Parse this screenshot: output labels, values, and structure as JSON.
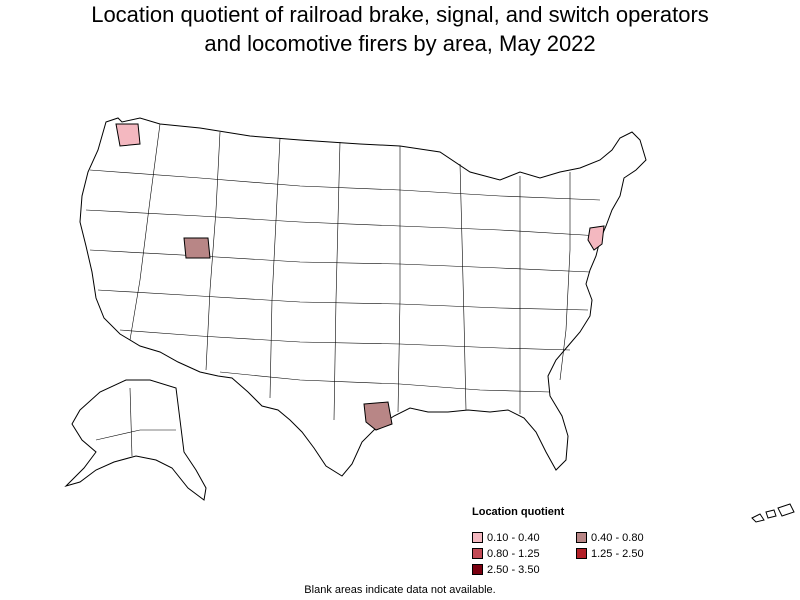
{
  "title": {
    "line1": "Location quotient of railroad brake, signal, and switch operators",
    "line2": "and locomotive firers by area, May 2022"
  },
  "legend": {
    "title": "Location quotient",
    "items": [
      {
        "label": "0.10 - 0.40",
        "color": "#f4b8c0"
      },
      {
        "label": "0.40 - 0.80",
        "color": "#b88686"
      },
      {
        "label": "0.80 - 1.25",
        "color": "#c24a55"
      },
      {
        "label": "1.25 - 2.50",
        "color": "#b22028"
      },
      {
        "label": "2.50 - 3.50",
        "color": "#7a0010"
      }
    ]
  },
  "footnote": "Blank areas indicate data not available.",
  "map": {
    "outline_color": "#000000",
    "blank_color": "#ffffff",
    "highlighted_areas": [
      {
        "region": "northwest-washington",
        "class": "0.10 - 0.40"
      },
      {
        "region": "northern-utah",
        "class": "0.40 - 0.80"
      },
      {
        "region": "southeast-texas",
        "class": "0.40 - 0.80"
      },
      {
        "region": "northern-new-jersey",
        "class": "0.10 - 0.40"
      }
    ]
  }
}
